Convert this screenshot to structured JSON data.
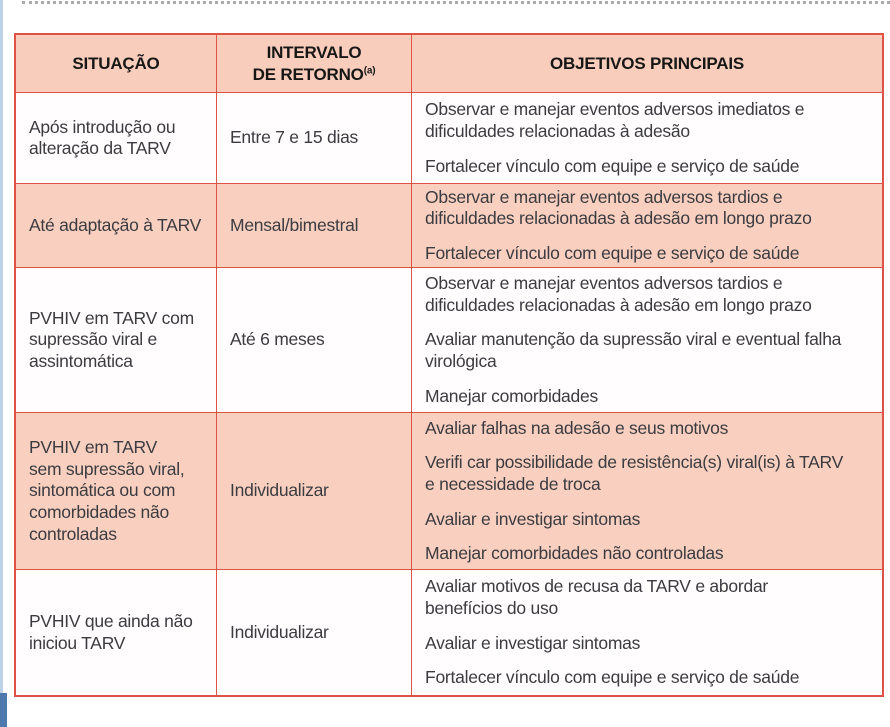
{
  "colors": {
    "table_border": "#df5246",
    "header_bg": "#f9cdbc",
    "shaded_row_bg": "#f9d0c0",
    "plain_row_bg": "#fffdfd",
    "body_text": "#3b3b40",
    "header_text": "#171716",
    "left_rule": "#bdd2e6",
    "left_rule_bottom": "#4d79ad",
    "dotted_rule": "#ababab"
  },
  "table": {
    "columns": [
      {
        "line1": "SITUAÇÃO",
        "line2": "",
        "sup": ""
      },
      {
        "line1": "INTERVALO",
        "line2": "DE RETORNO",
        "sup": "(a)"
      },
      {
        "line1": "OBJETIVOS PRINCIPAIS",
        "line2": "",
        "sup": ""
      }
    ],
    "rows": [
      {
        "shaded": false,
        "situacao": "Após introdução ou\nalteração da TARV",
        "intervalo": "Entre 7 e 15 dias",
        "objetivos": [
          "Observar e manejar eventos adversos imediatos e\ndificuldades relacionadas à adesão",
          "Fortalecer vínculo com equipe e serviço de saúde"
        ]
      },
      {
        "shaded": true,
        "situacao": "Até adaptação à TARV",
        "intervalo": "Mensal/bimestral",
        "objetivos": [
          "Observar e manejar eventos adversos tardios e\ndificuldades relacionadas à adesão em longo prazo",
          "Fortalecer vínculo com equipe e serviço de saúde"
        ]
      },
      {
        "shaded": false,
        "situacao": "PVHIV em TARV com\nsupressão viral e\nassintomática",
        "intervalo": "Até 6 meses",
        "objetivos": [
          "Observar e manejar eventos adversos tardios e\ndificuldades relacionadas à adesão em longo prazo",
          "Avaliar manutenção da supressão viral e eventual falha\nvirológica",
          "Manejar comorbidades"
        ]
      },
      {
        "shaded": true,
        "situacao": "PVHIV em TARV\nsem supressão viral,\nsintomática ou com\ncomorbidades não\ncontroladas",
        "intervalo": "Individualizar",
        "objetivos": [
          "Avaliar falhas na adesão e seus motivos",
          "Verifi car possibilidade de resistência(s) viral(is) à TARV\ne necessidade de troca",
          "Avaliar e investigar sintomas",
          "Manejar comorbidades não controladas"
        ]
      },
      {
        "shaded": false,
        "situacao": "PVHIV que ainda não\niniciou TARV",
        "intervalo": "Individualizar",
        "objetivos": [
          "Avaliar motivos de recusa da TARV e abordar\nbenefícios do uso",
          "Avaliar e investigar sintomas",
          "Fortalecer vínculo com equipe e serviço de saúde"
        ]
      }
    ]
  }
}
